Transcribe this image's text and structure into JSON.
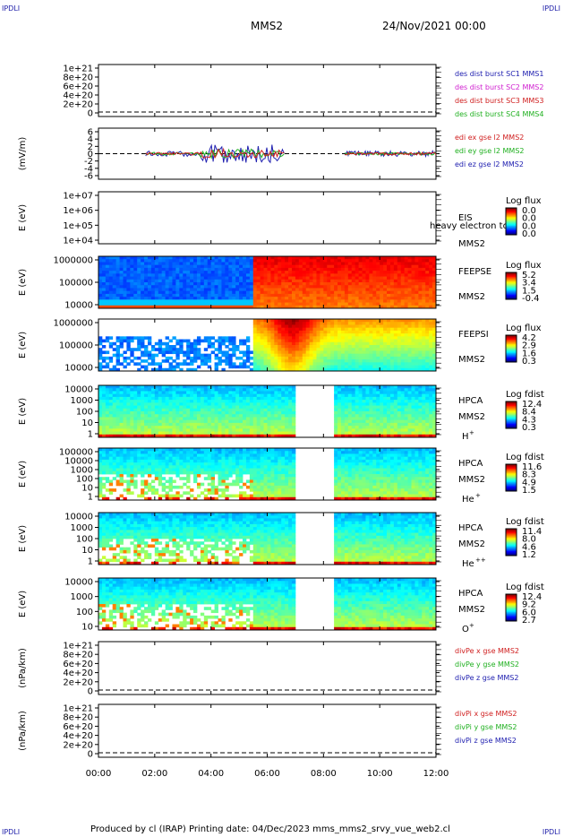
{
  "corners": {
    "tl": "IPDLI",
    "tr": "IPDLI",
    "bl": "IPDLI",
    "br": "IPDLI"
  },
  "header": {
    "title": "MMS2",
    "date": "24/Nov/2021 00:00"
  },
  "footer": {
    "text": "Produced by cl (IRAP)    Printing date: 04/Dec/2023    mms_mms2_srvy_vue_web2.cl"
  },
  "chart_data": {
    "type": "stacked-timeseries",
    "x_ticks": [
      "00:00",
      "02:00",
      "04:00",
      "06:00",
      "08:00",
      "10:00",
      "12:00"
    ],
    "x_range_hours": [
      0,
      12
    ],
    "panels": [
      {
        "id": "des-dist",
        "kind": "line",
        "y_ticks": [
          "1e+21",
          "8e+20",
          "6e+20",
          "4e+20",
          "2e+20",
          "0"
        ],
        "zero_dashed": true,
        "legend": [
          {
            "label": "des dist burst SC1 MMS1",
            "color": "#2020b0"
          },
          {
            "label": "des dist burst SC2 MMS2",
            "color": "#d020d0"
          },
          {
            "label": "des dist burst SC3 MMS3",
            "color": "#d02020"
          },
          {
            "label": "des dist burst SC4 MMS4",
            "color": "#20b020"
          }
        ]
      },
      {
        "id": "edi-e",
        "kind": "line",
        "ylabel": "(mV/m)",
        "y_ticks": [
          "6",
          "4",
          "2",
          "0",
          "-2",
          "-4",
          "-6"
        ],
        "zero_dashed": true,
        "legend": [
          {
            "label": "edi ex gse l2 MMS2",
            "color": "#d02020"
          },
          {
            "label": "edi ey gse l2 MMS2",
            "color": "#20b020"
          },
          {
            "label": "edi ez gse l2 MMS2",
            "color": "#2020b0"
          }
        ]
      },
      {
        "id": "eis",
        "kind": "spectrogram-empty",
        "ylabel": "E (eV)",
        "y_ticks": [
          "1e+07",
          "1e+06",
          "1e+05",
          "1e+04"
        ],
        "labels": [
          "EIS",
          "MMS2"
        ],
        "overlay_text": "heavy electron to",
        "colorbar": {
          "title": "Log flux",
          "ticks": [
            "0.0",
            "0.0",
            "0.0",
            "0.0"
          ]
        }
      },
      {
        "id": "feepse",
        "kind": "spectrogram",
        "ylabel": "E (eV)",
        "y_ticks": [
          "1000000",
          "100000",
          "10000"
        ],
        "labels": [
          "FEEPSE",
          "MMS2"
        ],
        "colorbar": {
          "title": "Log flux",
          "ticks": [
            "5.2",
            "3.4",
            "1.5",
            "-0.4"
          ]
        }
      },
      {
        "id": "feepsi",
        "kind": "spectrogram",
        "ylabel": "E (eV)",
        "y_ticks": [
          "1000000",
          "100000",
          "10000"
        ],
        "labels": [
          "FEEPSI",
          "MMS2"
        ],
        "colorbar": {
          "title": "Log flux",
          "ticks": [
            "4.2",
            "2.9",
            "1.6",
            "0.3"
          ]
        }
      },
      {
        "id": "hpca-h",
        "kind": "spectrogram",
        "ylabel": "E (eV)",
        "y_ticks": [
          "10000",
          "1000",
          "100",
          "10",
          "1"
        ],
        "labels": [
          "HPCA",
          "MMS2"
        ],
        "species": "H",
        "charge": "+",
        "colorbar": {
          "title": "Log fdist",
          "ticks": [
            "12.4",
            "8.4",
            "4.3",
            "0.3"
          ]
        }
      },
      {
        "id": "hpca-he",
        "kind": "spectrogram",
        "ylabel": "E (eV)",
        "y_ticks": [
          "100000",
          "10000",
          "1000",
          "100",
          "10",
          "1"
        ],
        "labels": [
          "HPCA",
          "MMS2"
        ],
        "species": "He",
        "charge": "+",
        "colorbar": {
          "title": "Log fdist",
          "ticks": [
            "11.6",
            "8.3",
            "4.9",
            "1.5"
          ]
        }
      },
      {
        "id": "hpca-he2",
        "kind": "spectrogram",
        "ylabel": "E (eV)",
        "y_ticks": [
          "10000",
          "1000",
          "100",
          "10",
          "1"
        ],
        "labels": [
          "HPCA",
          "MMS2"
        ],
        "species": "He",
        "charge": "++",
        "colorbar": {
          "title": "Log fdist",
          "ticks": [
            "11.4",
            "8.0",
            "4.6",
            "1.2"
          ]
        }
      },
      {
        "id": "hpca-o",
        "kind": "spectrogram",
        "ylabel": "E (eV)",
        "y_ticks": [
          "10000",
          "1000",
          "100",
          "10"
        ],
        "labels": [
          "HPCA",
          "MMS2"
        ],
        "species": "O",
        "charge": "+",
        "colorbar": {
          "title": "Log fdist",
          "ticks": [
            "12.4",
            "9.2",
            "6.0",
            "2.7"
          ]
        }
      },
      {
        "id": "divpe",
        "kind": "line",
        "ylabel": "(nPa/km)",
        "y_ticks": [
          "1e+21",
          "8e+20",
          "6e+20",
          "4e+20",
          "2e+20",
          "0"
        ],
        "zero_dashed": true,
        "legend": [
          {
            "label": "divPe x gse MMS2",
            "color": "#d02020"
          },
          {
            "label": "divPe y gse MMS2",
            "color": "#20b020"
          },
          {
            "label": "divPe z gse MMS2",
            "color": "#2020b0"
          }
        ]
      },
      {
        "id": "divpi",
        "kind": "line",
        "ylabel": "(nPa/km)",
        "y_ticks": [
          "1e+21",
          "8e+20",
          "6e+20",
          "4e+20",
          "2e+20",
          "0"
        ],
        "zero_dashed": true,
        "legend": [
          {
            "label": "divPi x gse MMS2",
            "color": "#d02020"
          },
          {
            "label": "divPi y gse MMS2",
            "color": "#20b020"
          },
          {
            "label": "divPi z gse MMS2",
            "color": "#2020b0"
          }
        ]
      }
    ]
  }
}
